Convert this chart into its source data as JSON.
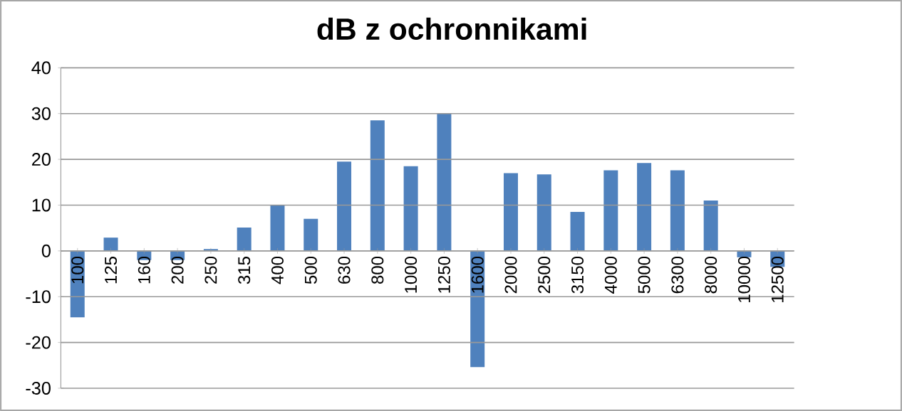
{
  "chart_data": {
    "type": "bar",
    "title": "dB z ochronnikami",
    "categories": [
      "100",
      "125",
      "160",
      "200",
      "250",
      "315",
      "400",
      "500",
      "630",
      "800",
      "1000",
      "1250",
      "1600",
      "2000",
      "2500",
      "3150",
      "4000",
      "5000",
      "6300",
      "8000",
      "10000",
      "12500"
    ],
    "values": [
      -14.5,
      2.9,
      -2.0,
      -2.0,
      0.4,
      5.1,
      10.0,
      7.0,
      19.5,
      28.5,
      18.5,
      30.0,
      -25.4,
      17.0,
      16.7,
      8.5,
      17.6,
      19.2,
      17.6,
      11.0,
      -1.4,
      -3.5
    ],
    "color": "#4f81bd",
    "ylim": [
      -30,
      40
    ],
    "yticks": [
      -30,
      -20,
      -10,
      0,
      10,
      20,
      30,
      40
    ],
    "grid": "y"
  }
}
